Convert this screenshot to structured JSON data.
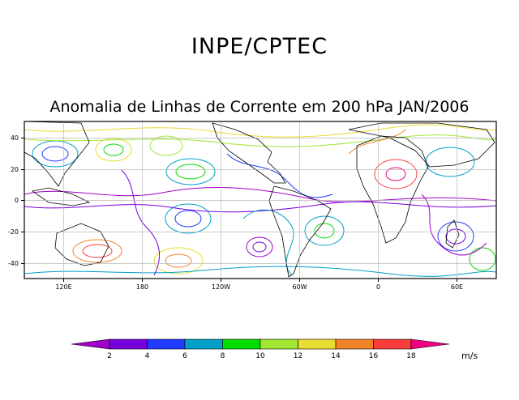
{
  "header": {
    "organization": "INPE/CPTEC",
    "title": "Anomalia de Linhas de Corrente em 200 hPa JAN/2006"
  },
  "map": {
    "lat_ticks": [
      "40",
      "20",
      "0",
      "-20",
      "-40"
    ],
    "lon_ticks": [
      "120E",
      "180",
      "120W",
      "60W",
      "0",
      "60E"
    ],
    "grid_color": "#b9b9b9"
  },
  "legend": {
    "units": "m/s",
    "labels": [
      "2",
      "4",
      "6",
      "8",
      "10",
      "12",
      "14",
      "16",
      "18"
    ],
    "colors": [
      "#a000c8",
      "#7800dc",
      "#1e3cff",
      "#00a0c8",
      "#00dc00",
      "#a0e632",
      "#e6dc32",
      "#f08228",
      "#fa3c3c",
      "#f00082"
    ]
  }
}
